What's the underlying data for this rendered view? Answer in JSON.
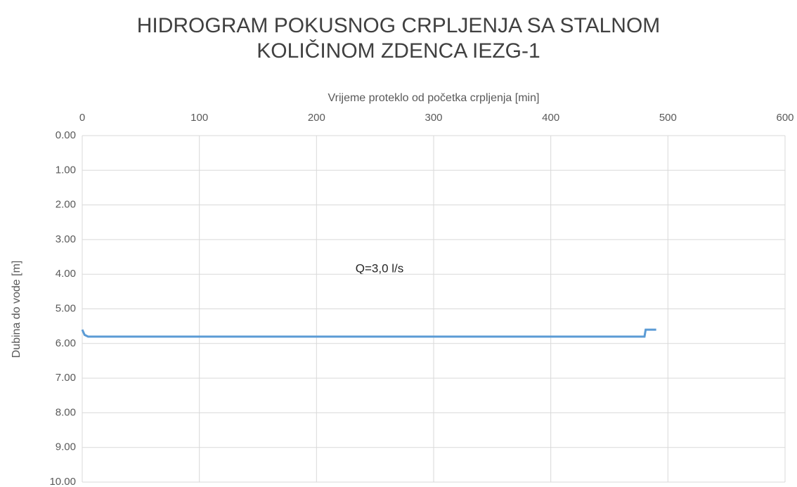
{
  "chart_data": {
    "type": "line",
    "title": [
      "HIDROGRAM POKUSNOG CRPLJENJA SA STALNOM",
      "KOLIČINOM ZDENCA IEZG-1"
    ],
    "x_label": "Vrijeme proteklo od početka crpljenja [min]",
    "y_label": "Dubina do vode [m]",
    "annotation": "Q=3,0 l/s",
    "x": [
      0,
      2,
      5,
      480,
      481,
      490
    ],
    "series": [
      {
        "name": "Q=3,0 l/s",
        "color": "#5b9bd5",
        "values": [
          5.6,
          5.75,
          5.8,
          5.8,
          5.6,
          5.6
        ]
      }
    ],
    "xlim": [
      0,
      600
    ],
    "xticks": [
      0,
      100,
      200,
      300,
      400,
      500,
      600
    ],
    "ylim": [
      0,
      10
    ],
    "y_inverted": true,
    "yticks": [
      {
        "value": 0,
        "label": "0.00"
      },
      {
        "value": 1,
        "label": "1.00"
      },
      {
        "value": 2,
        "label": "2.00"
      },
      {
        "value": 3,
        "label": "3.00"
      },
      {
        "value": 4,
        "label": "4.00"
      },
      {
        "value": 5,
        "label": "5.00"
      },
      {
        "value": 6,
        "label": "6.00"
      },
      {
        "value": 7,
        "label": "7.00"
      },
      {
        "value": 8,
        "label": "8.00"
      },
      {
        "value": 9,
        "label": "9.00"
      },
      {
        "value": 10,
        "label": "10.00"
      }
    ],
    "grid": true,
    "x_axis_position": "top"
  }
}
